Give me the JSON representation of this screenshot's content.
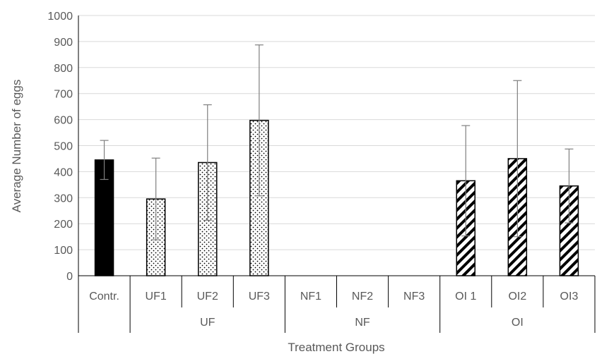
{
  "chart_data": {
    "type": "bar",
    "title": "",
    "xlabel": "Treatment Groups",
    "ylabel": "Average  Number  of eggs",
    "ylim": [
      0,
      1000
    ],
    "yticks": [
      0,
      100,
      200,
      300,
      400,
      500,
      600,
      700,
      800,
      900,
      1000
    ],
    "grid": true,
    "legend": "none",
    "categories": [
      "Contr.",
      "UF1",
      "UF2",
      "UF3",
      "NF1",
      "NF2",
      "NF3",
      "OI 1",
      "OI2",
      "OI3"
    ],
    "groups": [
      {
        "label": "",
        "categories": [
          "Contr."
        ]
      },
      {
        "label": "UF",
        "categories": [
          "UF1",
          "UF2",
          "UF3"
        ]
      },
      {
        "label": "NF",
        "categories": [
          "NF1",
          "NF2",
          "NF3"
        ]
      },
      {
        "label": "OI",
        "categories": [
          "OI 1",
          "OI2",
          "OI3"
        ]
      }
    ],
    "series": [
      {
        "values": [
          445,
          295,
          435,
          597,
          0,
          0,
          0,
          365,
          450,
          345
        ],
        "error": [
          75,
          157,
          222,
          290,
          0,
          0,
          0,
          212,
          300,
          142
        ],
        "patterns": [
          "solid",
          "dots",
          "dots",
          "dots",
          "none",
          "none",
          "none",
          "hatch",
          "hatch",
          "hatch"
        ]
      }
    ],
    "colors": {
      "solid": "#000000",
      "bar_border": "#000000",
      "error_bar": "#7f7f7f",
      "grid": "#d9d9d9",
      "axis": "#000000",
      "text": "#595959"
    }
  }
}
